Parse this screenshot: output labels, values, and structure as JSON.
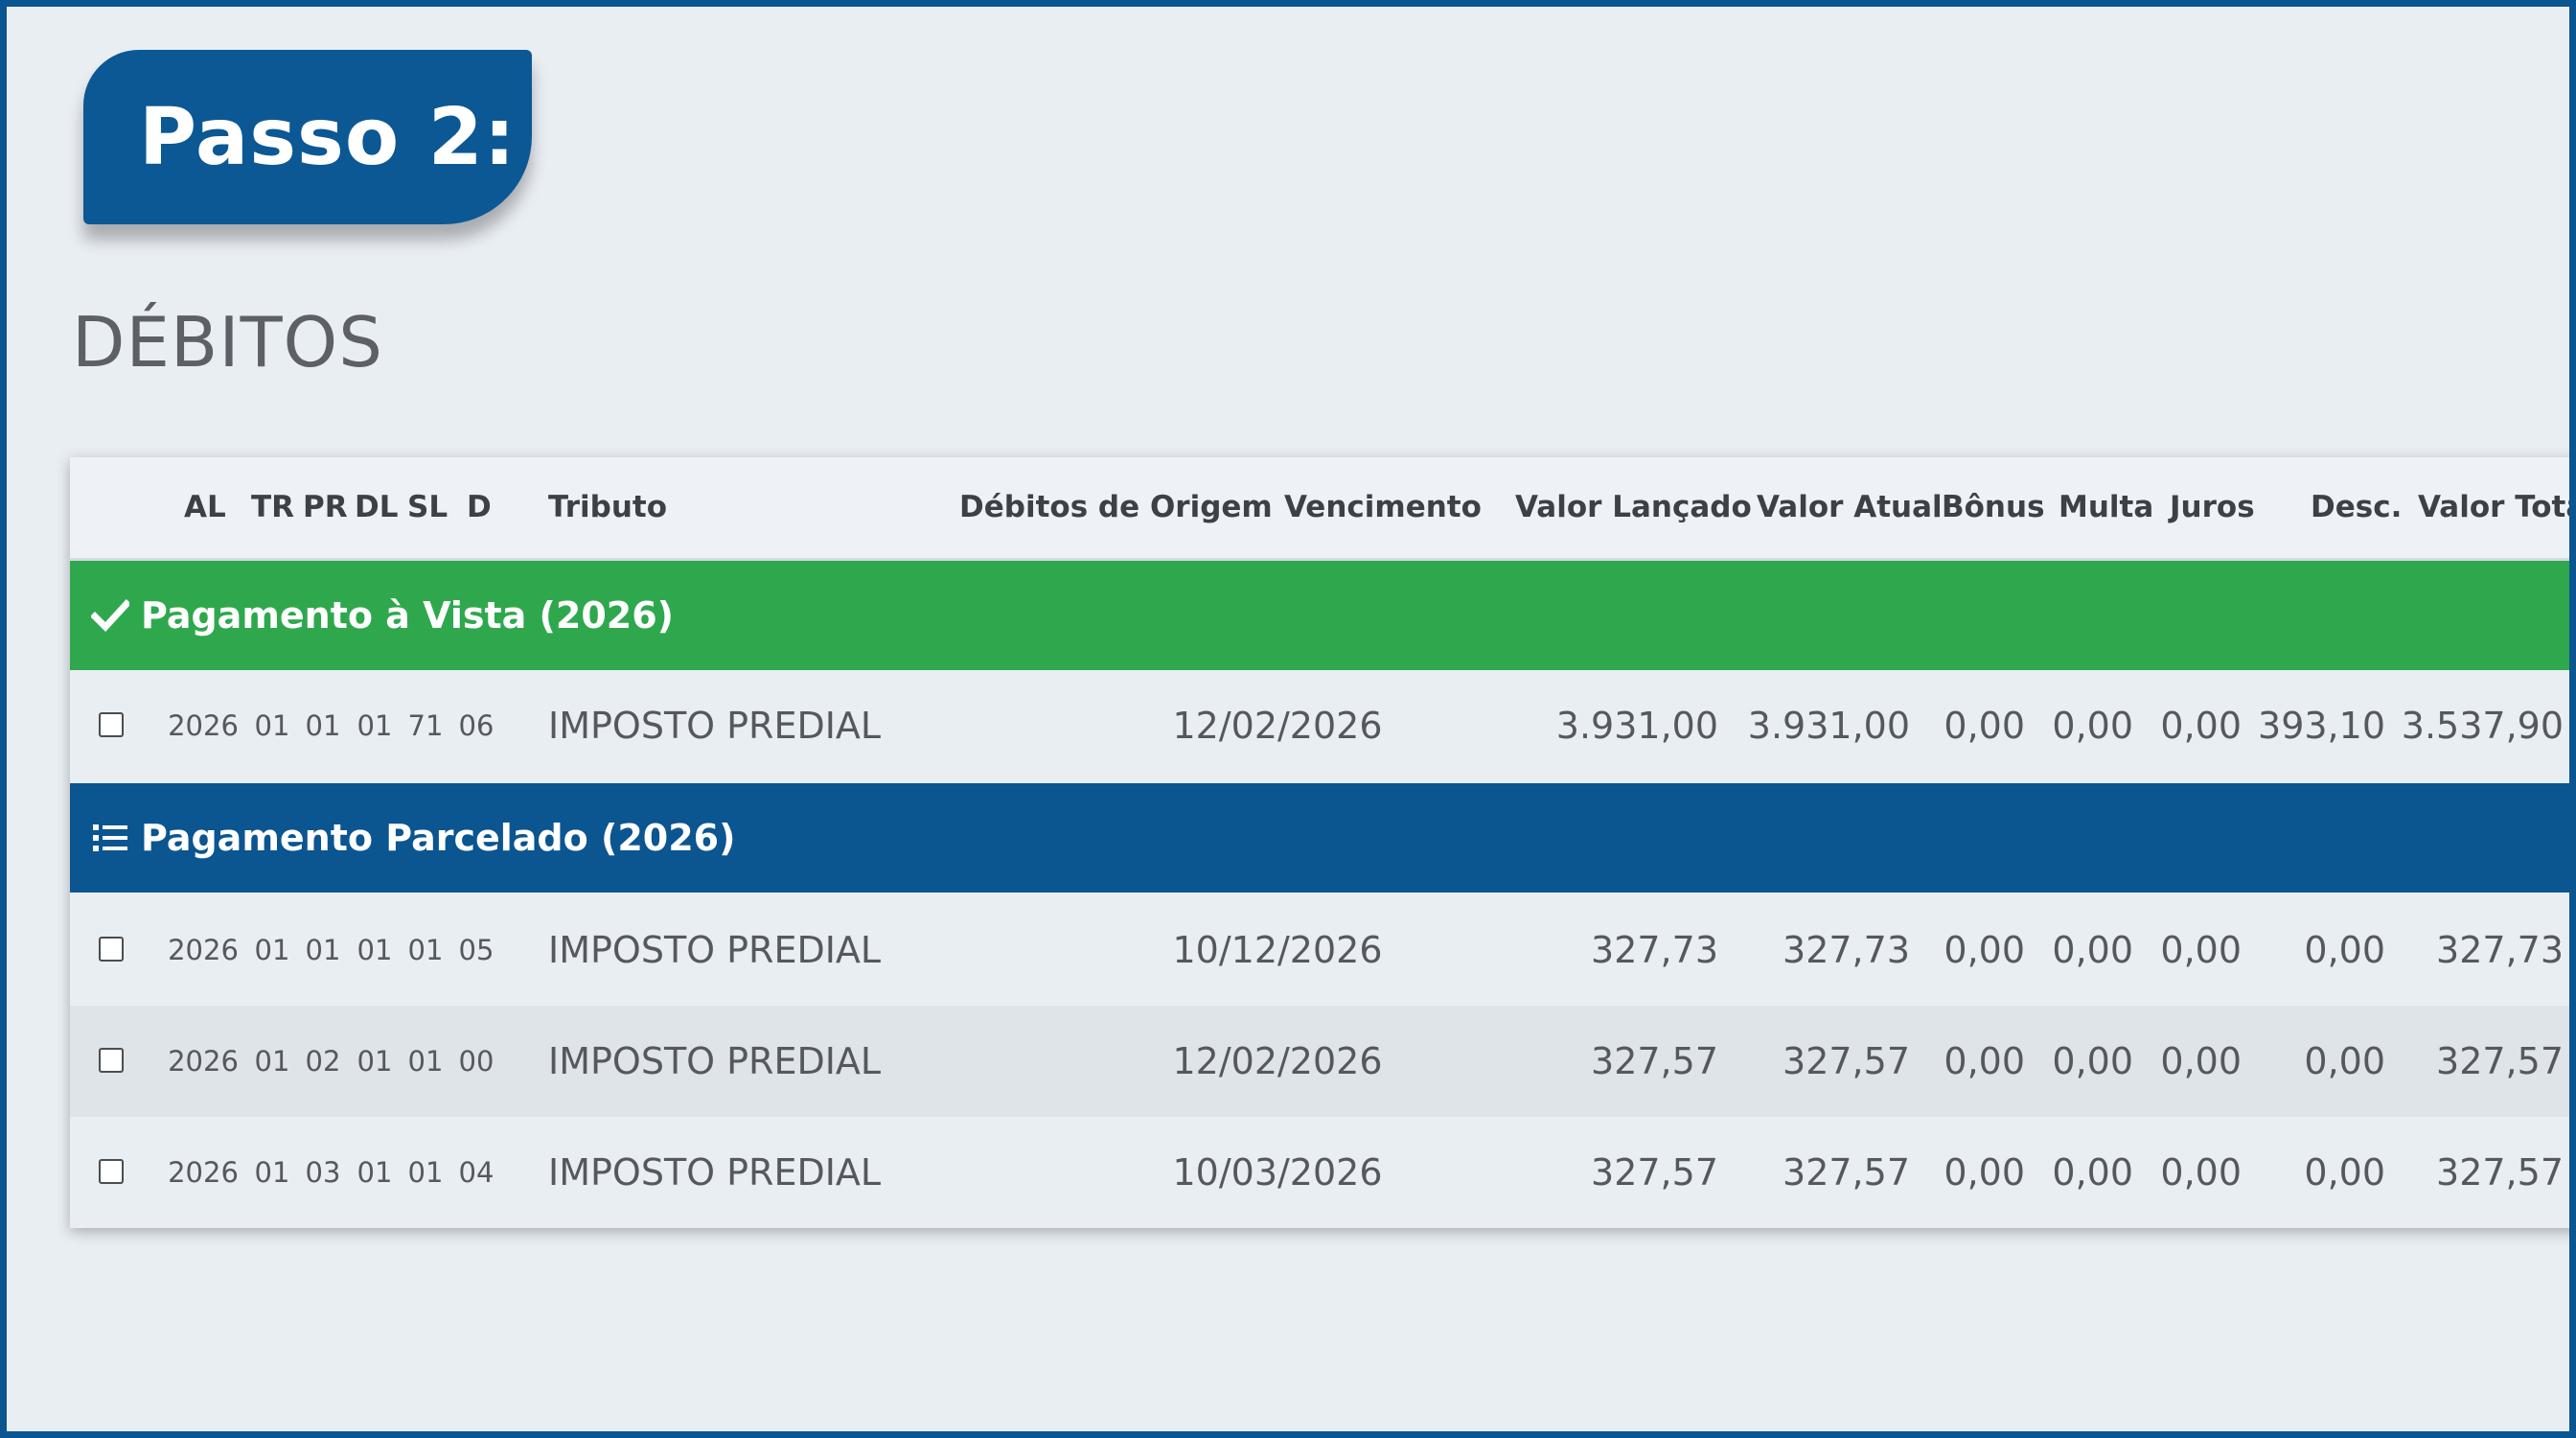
{
  "step": {
    "label": "Passo 2:"
  },
  "section": {
    "title": "DÉBITOS"
  },
  "columns": {
    "al": "AL",
    "tr": "TR",
    "pr": "PR",
    "dl": "DL",
    "sl": "SL",
    "d": "D",
    "tributo": "Tributo",
    "debitos_origem": "Débitos de Origem",
    "vencimento": "Vencimento",
    "valor_lancado": "Valor Lançado",
    "valor_atual": "Valor Atual",
    "bonus": "Bônus",
    "multa": "Multa",
    "juros": "Juros",
    "desc": "Desc.",
    "valor_total": "Valor Tota"
  },
  "groups": [
    {
      "label": "Pagamento à Vista (2026)",
      "icon": "check-icon",
      "color": "#2fa84d",
      "rows": [
        {
          "al": "2026",
          "tr": "01",
          "pr": "01",
          "dl": "01",
          "sl": "71",
          "d": "06",
          "tributo": "IMPOSTO PREDIAL",
          "vencimento": "12/02/2026",
          "valor_lancado": "3.931,00",
          "valor_atual": "3.931,00",
          "bonus": "0,00",
          "multa": "0,00",
          "juros": "0,00",
          "desc": "393,10",
          "valor_total": "3.537,90"
        }
      ]
    },
    {
      "label": "Pagamento Parcelado (2026)",
      "icon": "list-icon",
      "color": "#0b5590",
      "rows": [
        {
          "al": "2026",
          "tr": "01",
          "pr": "01",
          "dl": "01",
          "sl": "01",
          "d": "05",
          "tributo": "IMPOSTO PREDIAL",
          "vencimento": "10/12/2026",
          "valor_lancado": "327,73",
          "valor_atual": "327,73",
          "bonus": "0,00",
          "multa": "0,00",
          "juros": "0,00",
          "desc": "0,00",
          "valor_total": "327,73"
        },
        {
          "al": "2026",
          "tr": "01",
          "pr": "02",
          "dl": "01",
          "sl": "01",
          "d": "00",
          "tributo": "IMPOSTO PREDIAL",
          "vencimento": "12/02/2026",
          "valor_lancado": "327,57",
          "valor_atual": "327,57",
          "bonus": "0,00",
          "multa": "0,00",
          "juros": "0,00",
          "desc": "0,00",
          "valor_total": "327,57"
        },
        {
          "al": "2026",
          "tr": "01",
          "pr": "03",
          "dl": "01",
          "sl": "01",
          "d": "04",
          "tributo": "IMPOSTO PREDIAL",
          "vencimento": "10/03/2026",
          "valor_lancado": "327,57",
          "valor_atual": "327,57",
          "bonus": "0,00",
          "multa": "0,00",
          "juros": "0,00",
          "desc": "0,00",
          "valor_total": "327,57"
        }
      ]
    }
  ]
}
